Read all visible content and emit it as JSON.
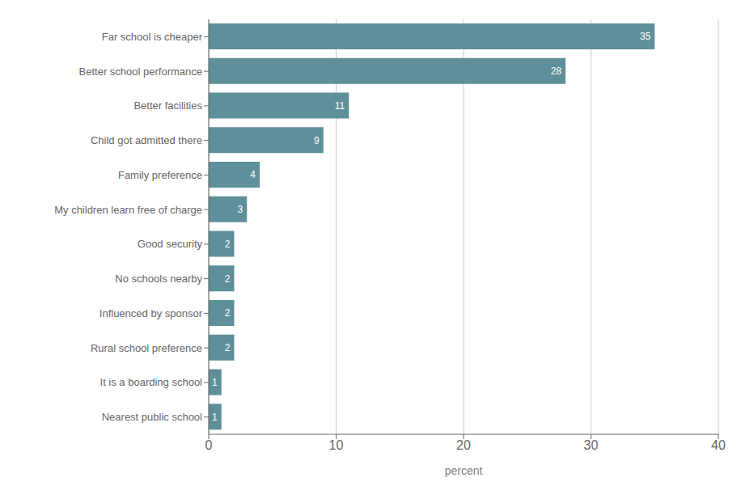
{
  "chart_data": {
    "type": "bar",
    "orientation": "horizontal",
    "categories": [
      "Nearest public school",
      "It is a boarding school",
      "Rural school preference",
      "Influenced by sponsor",
      "No schools nearby",
      "Good security",
      "My children learn free of charge",
      "Family preference",
      "Child got admitted there",
      "Better facilities",
      "Better school performance",
      "Far school is cheaper"
    ],
    "values": [
      1,
      1,
      2,
      2,
      2,
      2,
      3,
      4,
      9,
      11,
      28,
      35
    ],
    "color": "#5f8f99",
    "xlabel": "percent",
    "xlim": [
      0,
      40
    ],
    "xticks": [
      0,
      10,
      20,
      30,
      40
    ],
    "grid": true,
    "data_labels": true
  }
}
